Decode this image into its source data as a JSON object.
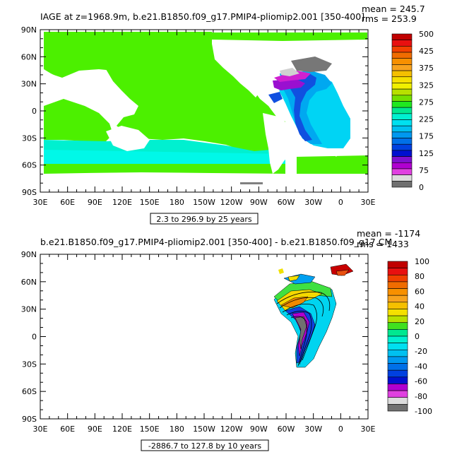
{
  "panel1": {
    "title": "IAGE at z=1968.9m, b.e21.B1850.f09_g17.PMIP4-pliomip2.001 [350-400]",
    "mean": "mean = 245.7",
    "rms": "rms = 253.9",
    "range_caption": "2.3 to 296.9 by 25 years",
    "lat_labels": [
      "90N",
      "60N",
      "30N",
      "0",
      "30S",
      "60S",
      "90S"
    ],
    "lon_labels": [
      "30E",
      "60E",
      "90E",
      "120E",
      "150E",
      "180",
      "150W",
      "120W",
      "90W",
      "60W",
      "30W",
      "0",
      "30E"
    ],
    "colorbar": {
      "labels": [
        "500",
        "425",
        "375",
        "325",
        "275",
        "225",
        "175",
        "125",
        "75",
        "0"
      ],
      "colors": [
        "#c00000",
        "#e81010",
        "#f24000",
        "#f06c00",
        "#f79000",
        "#f7a21e",
        "#f5c000",
        "#f5e000",
        "#f0f000",
        "#b8e000",
        "#74e000",
        "#20e820",
        "#00e890",
        "#00f0d0",
        "#00e0f0",
        "#00c0f0",
        "#0098f0",
        "#0070e8",
        "#0040e0",
        "#0010d0",
        "#8010d0",
        "#b000d0",
        "#e040e0",
        "#dcdcdc",
        "#707070"
      ]
    }
  },
  "panel2": {
    "title": "b.e21.B1850.f09_g17.PMIP4-pliomip2.001 [350-400] - b.e21.B1850.f09_g17.CM",
    "mean": "mean = -1174",
    "rms": "rms = 1433",
    "range_caption": "-2886.7 to 127.8 by 10 years",
    "lat_labels": [
      "90N",
      "60N",
      "30N",
      "0",
      "30S",
      "60S",
      "90S"
    ],
    "lon_labels": [
      "30E",
      "60E",
      "90E",
      "120E",
      "150E",
      "180",
      "150W",
      "120W",
      "90W",
      "60W",
      "30W",
      "0",
      "30E"
    ],
    "colorbar": {
      "labels": [
        "100",
        "80",
        "60",
        "40",
        "20",
        "0",
        "-20",
        "-40",
        "-60",
        "-80",
        "-100"
      ],
      "colors": [
        "#c00000",
        "#e81010",
        "#f04000",
        "#f06c00",
        "#f79000",
        "#f7a21e",
        "#f5c000",
        "#f5e000",
        "#b8e000",
        "#40e020",
        "#00e890",
        "#00f0d0",
        "#00e0f0",
        "#00c0f0",
        "#0098f0",
        "#0070e8",
        "#0040e0",
        "#0010d0",
        "#b000d0",
        "#e040e0",
        "#dcdcdc",
        "#707070"
      ]
    }
  }
}
